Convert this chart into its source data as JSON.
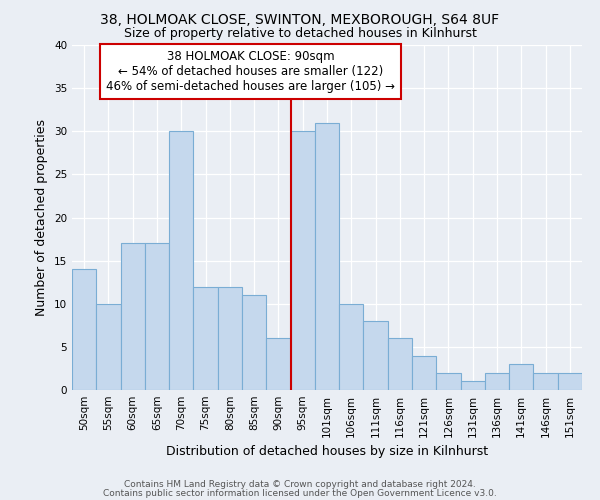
{
  "title1": "38, HOLMOAK CLOSE, SWINTON, MEXBOROUGH, S64 8UF",
  "title2": "Size of property relative to detached houses in Kilnhurst",
  "xlabel": "Distribution of detached houses by size in Kilnhurst",
  "ylabel": "Number of detached properties",
  "categories": [
    "50sqm",
    "55sqm",
    "60sqm",
    "65sqm",
    "70sqm",
    "75sqm",
    "80sqm",
    "85sqm",
    "90sqm",
    "95sqm",
    "101sqm",
    "106sqm",
    "111sqm",
    "116sqm",
    "121sqm",
    "126sqm",
    "131sqm",
    "136sqm",
    "141sqm",
    "146sqm",
    "151sqm"
  ],
  "values": [
    14,
    10,
    17,
    17,
    30,
    12,
    12,
    11,
    6,
    30,
    31,
    10,
    8,
    6,
    4,
    2,
    1,
    2,
    3,
    2,
    2
  ],
  "bar_color": "#c5d8ed",
  "bar_edge_color": "#7aadd4",
  "vline_color": "#cc0000",
  "annotation_line1": "38 HOLMOAK CLOSE: 90sqm",
  "annotation_line2": "← 54% of detached houses are smaller (122)",
  "annotation_line3": "46% of semi-detached houses are larger (105) →",
  "annotation_box_edge_color": "#cc0000",
  "annotation_box_face_color": "#ffffff",
  "ylim": [
    0,
    40
  ],
  "yticks": [
    0,
    5,
    10,
    15,
    20,
    25,
    30,
    35,
    40
  ],
  "bg_color": "#eaeef4",
  "plot_bg_color": "#eaeef4",
  "footer1": "Contains HM Land Registry data © Crown copyright and database right 2024.",
  "footer2": "Contains public sector information licensed under the Open Government Licence v3.0.",
  "title_fontsize": 10,
  "subtitle_fontsize": 9,
  "axis_label_fontsize": 9,
  "tick_fontsize": 7.5,
  "annotation_fontsize": 8.5,
  "footer_fontsize": 6.5
}
